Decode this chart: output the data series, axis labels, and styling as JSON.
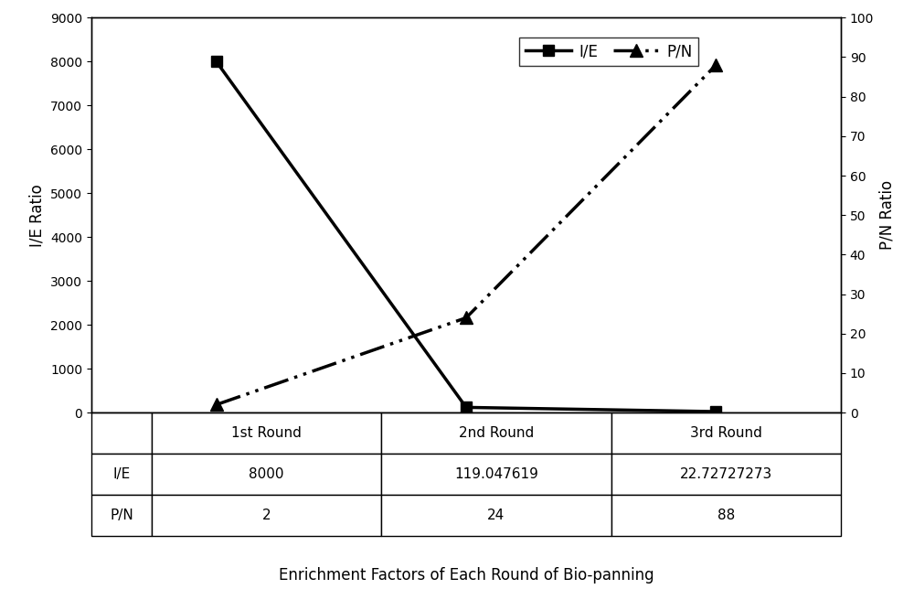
{
  "rounds": [
    "1st Round",
    "2nd Round",
    "3rd Round"
  ],
  "ie_values": [
    8000,
    119.047619,
    22.72727273
  ],
  "pn_values": [
    2,
    24,
    88
  ],
  "ie_label": "I/E",
  "pn_label": "P/N",
  "ylabel_left": "I/E Ratio",
  "ylabel_right": "P/N Ratio",
  "xlabel": "Enrichment Factors of Each Round of Bio-panning",
  "ylim_left": [
    0,
    9000
  ],
  "ylim_right": [
    0,
    100
  ],
  "yticks_left": [
    0,
    1000,
    2000,
    3000,
    4000,
    5000,
    6000,
    7000,
    8000,
    9000
  ],
  "yticks_right": [
    0,
    10,
    20,
    30,
    40,
    50,
    60,
    70,
    80,
    90,
    100
  ],
  "table_header": [
    "",
    "1st Round",
    "2nd Round",
    "3rd Round"
  ],
  "table_ie": [
    "I/E",
    "8000",
    "119.047619",
    "22.72727273"
  ],
  "table_pn": [
    "P/N",
    "2",
    "24",
    "88"
  ],
  "line_color": "#000000",
  "background_color": "#ffffff",
  "figsize": [
    10.0,
    6.44
  ],
  "dpi": 100
}
